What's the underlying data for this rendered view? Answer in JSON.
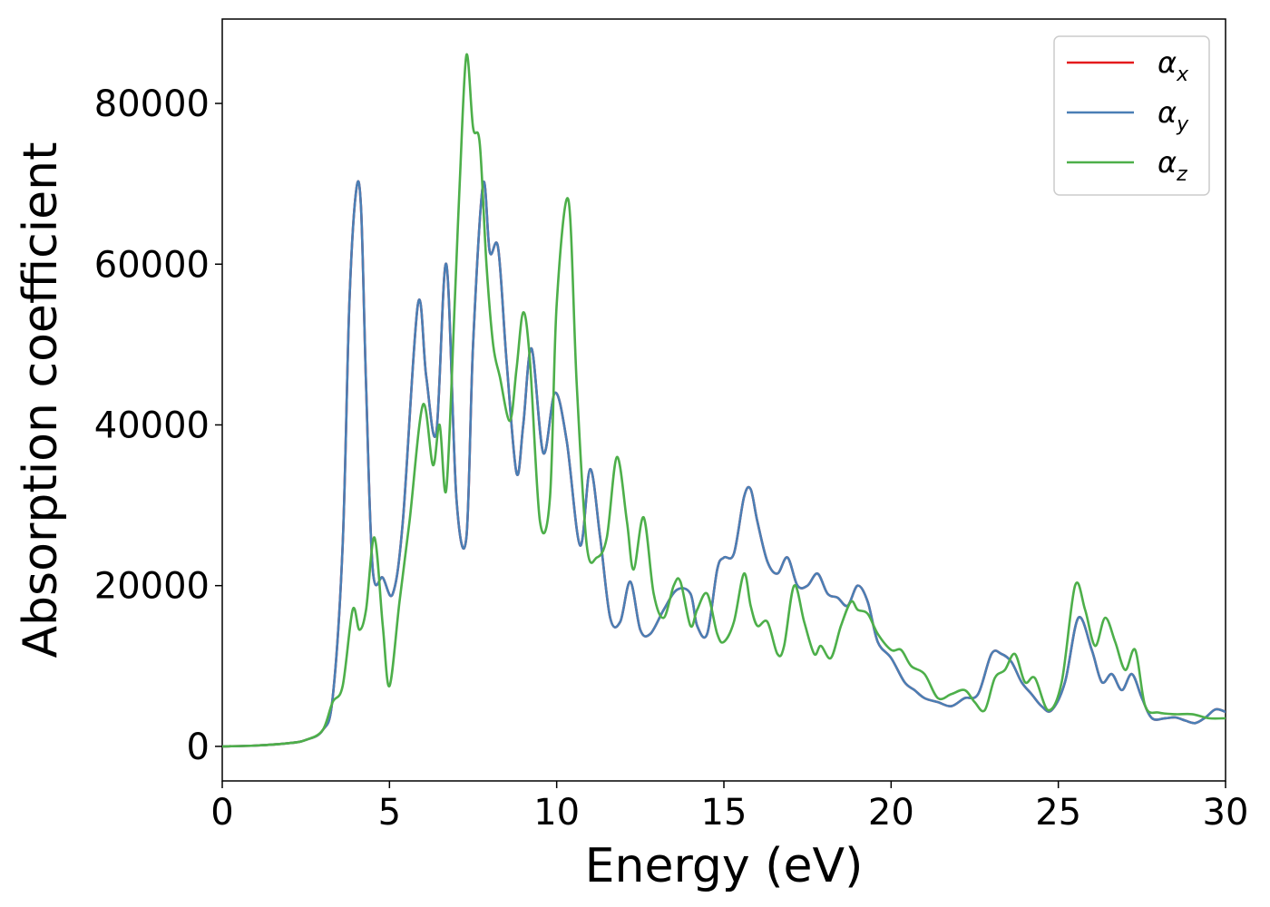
{
  "chart_data": {
    "type": "line",
    "xlabel": "Energy (eV)",
    "ylabel": "Absorption coefficient",
    "xlim": [
      0,
      30
    ],
    "ylim": [
      -4300,
      90500
    ],
    "x_ticks": [
      0,
      5,
      10,
      15,
      20,
      25,
      30
    ],
    "x_tick_labels": [
      "0",
      "5",
      "10",
      "15",
      "20",
      "25",
      "30"
    ],
    "y_ticks": [
      0,
      20000,
      40000,
      60000,
      80000
    ],
    "y_tick_labels": [
      "0",
      "20000",
      "40000",
      "60000",
      "80000"
    ],
    "grid": false,
    "legend_position": "top-right",
    "series": [
      {
        "name": "x",
        "color": "#e41a1c",
        "x": [
          0,
          1,
          2,
          2.5,
          3,
          3.3,
          3.6,
          3.8,
          4.0,
          4.15,
          4.3,
          4.5,
          4.8,
          5.1,
          5.4,
          5.85,
          6.1,
          6.4,
          6.7,
          7.0,
          7.3,
          7.5,
          7.8,
          8.0,
          8.25,
          8.5,
          8.8,
          9.0,
          9.25,
          9.6,
          9.95,
          10.3,
          10.7,
          11.0,
          11.3,
          11.6,
          11.9,
          12.2,
          12.5,
          12.8,
          13.2,
          13.6,
          14.0,
          14.2,
          14.5,
          14.8,
          15.0,
          15.3,
          15.6,
          15.8,
          16.0,
          16.3,
          16.6,
          16.9,
          17.2,
          17.5,
          17.8,
          18.1,
          18.4,
          18.7,
          19.0,
          19.3,
          19.6,
          20.0,
          20.4,
          20.7,
          21.0,
          21.4,
          21.8,
          22.2,
          22.6,
          23.0,
          23.3,
          23.6,
          23.9,
          24.2,
          24.5,
          24.8,
          25.2,
          25.6,
          26.0,
          26.3,
          26.6,
          26.9,
          27.2,
          27.5,
          27.8,
          28.2,
          28.5,
          28.8,
          29.1,
          29.4,
          29.7,
          30.0
        ],
        "y": [
          0,
          100,
          400,
          800,
          2000,
          6000,
          25000,
          55000,
          69000,
          67000,
          45000,
          22000,
          21000,
          19000,
          28000,
          55000,
          46000,
          39000,
          60000,
          31000,
          26000,
          50000,
          70000,
          61500,
          62000,
          48000,
          34000,
          40000,
          49500,
          36500,
          44000,
          38000,
          25000,
          34500,
          26000,
          16000,
          15500,
          20500,
          14500,
          14000,
          17000,
          19500,
          19000,
          15000,
          14000,
          22000,
          23500,
          24000,
          31000,
          32000,
          28000,
          23000,
          21500,
          23500,
          20000,
          20000,
          21500,
          19000,
          18500,
          17500,
          20000,
          18000,
          13000,
          11000,
          8000,
          7000,
          6000,
          5500,
          5000,
          6000,
          6500,
          11500,
          11500,
          10500,
          8000,
          6500,
          5000,
          4500,
          8000,
          16000,
          12000,
          8000,
          9000,
          7000,
          9000,
          6000,
          3500,
          3500,
          3600,
          3200,
          2900,
          3600,
          4600,
          4300
        ]
      },
      {
        "name": "y",
        "color": "#4a7fb5",
        "x": [
          0,
          1,
          2,
          2.5,
          3,
          3.3,
          3.6,
          3.8,
          4.0,
          4.15,
          4.3,
          4.5,
          4.8,
          5.1,
          5.4,
          5.85,
          6.1,
          6.4,
          6.7,
          7.0,
          7.3,
          7.5,
          7.8,
          8.0,
          8.25,
          8.5,
          8.8,
          9.0,
          9.25,
          9.6,
          9.95,
          10.3,
          10.7,
          11.0,
          11.3,
          11.6,
          11.9,
          12.2,
          12.5,
          12.8,
          13.2,
          13.6,
          14.0,
          14.2,
          14.5,
          14.8,
          15.0,
          15.3,
          15.6,
          15.8,
          16.0,
          16.3,
          16.6,
          16.9,
          17.2,
          17.5,
          17.8,
          18.1,
          18.4,
          18.7,
          19.0,
          19.3,
          19.6,
          20.0,
          20.4,
          20.7,
          21.0,
          21.4,
          21.8,
          22.2,
          22.6,
          23.0,
          23.3,
          23.6,
          23.9,
          24.2,
          24.5,
          24.8,
          25.2,
          25.6,
          26.0,
          26.3,
          26.6,
          26.9,
          27.2,
          27.5,
          27.8,
          28.2,
          28.5,
          28.8,
          29.1,
          29.4,
          29.7,
          30.0
        ],
        "y": [
          0,
          100,
          400,
          800,
          2000,
          6000,
          25000,
          55000,
          69000,
          67000,
          45000,
          22000,
          21000,
          19000,
          28000,
          55000,
          46000,
          39000,
          60000,
          31000,
          26000,
          50000,
          70000,
          61500,
          62000,
          48000,
          34000,
          40000,
          49500,
          36500,
          44000,
          38000,
          25000,
          34500,
          26000,
          16000,
          15500,
          20500,
          14500,
          14000,
          17000,
          19500,
          19000,
          15000,
          14000,
          22000,
          23500,
          24000,
          31000,
          32000,
          28000,
          23000,
          21500,
          23500,
          20000,
          20000,
          21500,
          19000,
          18500,
          17500,
          20000,
          18000,
          13000,
          11000,
          8000,
          7000,
          6000,
          5500,
          5000,
          6000,
          6500,
          11500,
          11500,
          10500,
          8000,
          6500,
          5000,
          4500,
          8000,
          16000,
          12000,
          8000,
          9000,
          7000,
          9000,
          6000,
          3500,
          3500,
          3600,
          3200,
          2900,
          3600,
          4600,
          4300
        ]
      },
      {
        "name": "z",
        "color": "#4daf4a",
        "x": [
          0,
          1,
          2,
          2.5,
          3.0,
          3.3,
          3.6,
          3.9,
          4.1,
          4.3,
          4.55,
          4.8,
          5.0,
          5.3,
          5.6,
          6.0,
          6.3,
          6.5,
          6.7,
          6.95,
          7.1,
          7.3,
          7.5,
          7.7,
          7.9,
          8.1,
          8.3,
          8.6,
          8.8,
          9.0,
          9.2,
          9.5,
          9.8,
          10.0,
          10.35,
          10.6,
          10.9,
          11.2,
          11.5,
          11.8,
          12.1,
          12.3,
          12.6,
          12.9,
          13.2,
          13.5,
          13.7,
          14.0,
          14.2,
          14.5,
          14.8,
          15.0,
          15.3,
          15.6,
          15.8,
          16.0,
          16.3,
          16.6,
          16.8,
          17.1,
          17.4,
          17.7,
          17.9,
          18.2,
          18.5,
          18.8,
          19.0,
          19.3,
          19.6,
          20.0,
          20.3,
          20.6,
          21.0,
          21.4,
          21.8,
          22.2,
          22.5,
          22.8,
          23.1,
          23.4,
          23.7,
          24.0,
          24.3,
          24.7,
          25.1,
          25.5,
          25.8,
          26.1,
          26.4,
          26.7,
          27.0,
          27.3,
          27.6,
          28.0,
          28.5,
          29.0,
          29.5,
          30.0
        ],
        "y": [
          0,
          100,
          400,
          800,
          2000,
          5500,
          7500,
          17000,
          14500,
          17000,
          26000,
          15000,
          7500,
          18000,
          28000,
          42500,
          35000,
          40000,
          32000,
          55000,
          70000,
          86000,
          77000,
          75000,
          60000,
          50000,
          46000,
          40500,
          47000,
          54000,
          48000,
          28000,
          31000,
          55000,
          68000,
          45000,
          25000,
          23500,
          26000,
          36000,
          28000,
          22000,
          28500,
          19000,
          16000,
          20000,
          20500,
          15000,
          17000,
          19000,
          14000,
          13000,
          15500,
          21500,
          17500,
          15000,
          15500,
          11500,
          12500,
          20000,
          15500,
          11500,
          12500,
          11000,
          15000,
          18000,
          17000,
          16500,
          14000,
          12000,
          12000,
          10000,
          9000,
          6000,
          6500,
          7000,
          5500,
          4500,
          8500,
          9500,
          11500,
          8000,
          8500,
          4500,
          8000,
          20000,
          17000,
          12500,
          16000,
          13000,
          9500,
          12000,
          5000,
          4200,
          4000,
          4000,
          3500,
          3500
        ]
      }
    ]
  }
}
